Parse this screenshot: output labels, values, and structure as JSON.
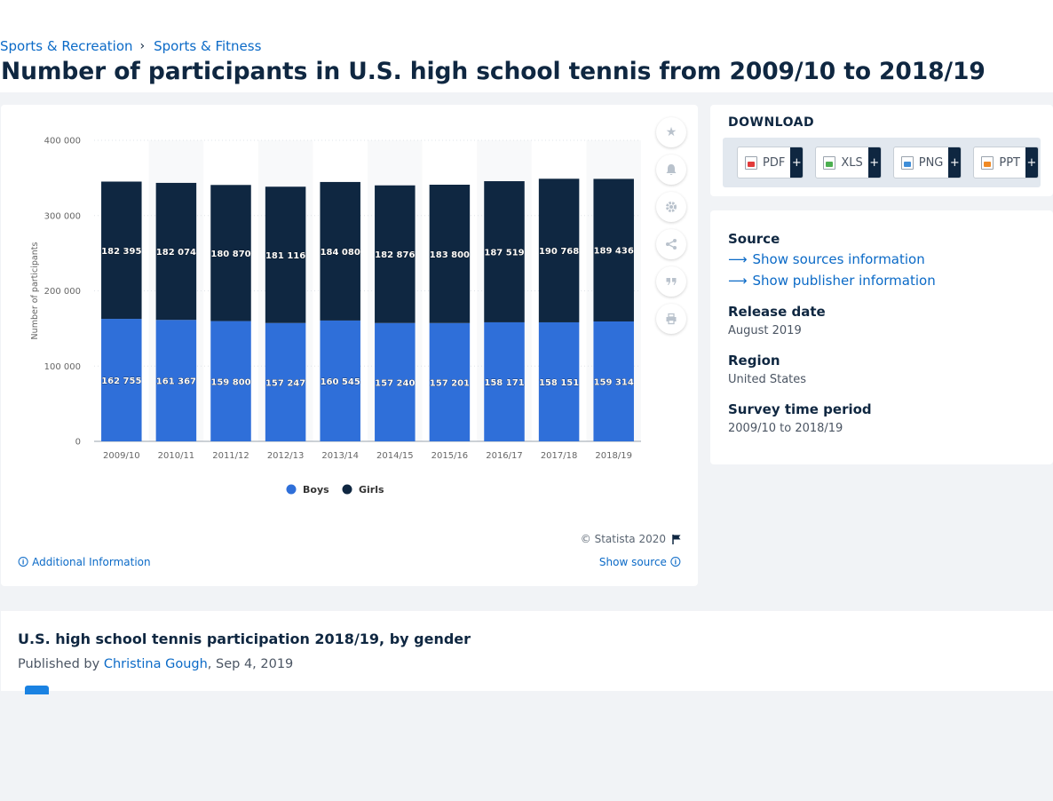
{
  "breadcrumb": {
    "item1": "Sports & Recreation",
    "separator": "›",
    "item2": "Sports & Fitness"
  },
  "page_title": "Number of participants in U.S. high school tennis from 2009/10 to 2018/19",
  "chart_tools": [
    "star-icon",
    "bell-icon",
    "gear-icon",
    "share-icon",
    "quote-icon",
    "print-icon"
  ],
  "chart_footer": {
    "copyright": "© Statista 2020",
    "additional_info": "Additional Information",
    "show_source": "Show source"
  },
  "download": {
    "title": "DOWNLOAD",
    "buttons": [
      {
        "label": "PDF",
        "color": "#e23b3b"
      },
      {
        "label": "XLS",
        "color": "#4caf50"
      },
      {
        "label": "PNG",
        "color": "#3f8ed8"
      },
      {
        "label": "PPT",
        "color": "#f08a24"
      }
    ],
    "plus": "+"
  },
  "meta": {
    "source_label": "Source",
    "show_sources": "Show sources information",
    "show_publisher": "Show publisher information",
    "release_label": "Release date",
    "release_value": "August 2019",
    "region_label": "Region",
    "region_value": "United States",
    "survey_label": "Survey time period",
    "survey_value": "2009/10 to 2018/19"
  },
  "related": {
    "title": "U.S. high school tennis participation 2018/19, by gender",
    "published_by": "Published by",
    "author": "Christina Gough",
    "date": ", Sep 4, 2019"
  },
  "chart_data": {
    "type": "bar",
    "stacked": true,
    "categories": [
      "2009/10",
      "2010/11",
      "2011/12",
      "2012/13",
      "2013/14",
      "2014/15",
      "2015/16",
      "2016/17",
      "2017/18",
      "2018/19"
    ],
    "series": [
      {
        "name": "Boys",
        "color": "#2f6fd9",
        "values": [
          162755,
          161367,
          159800,
          157247,
          160545,
          157240,
          157201,
          158171,
          158151,
          159314
        ],
        "labels": [
          "162 755",
          "161 367",
          "159 800",
          "157 247",
          "160 545",
          "157 240",
          "157 201",
          "158 171",
          "158 151",
          "159 314"
        ]
      },
      {
        "name": "Girls",
        "color": "#0f2741",
        "values": [
          182395,
          182074,
          180870,
          181116,
          184080,
          182876,
          183800,
          187519,
          190768,
          189436
        ],
        "labels": [
          "182 395",
          "182 074",
          "180 870",
          "181 116",
          "184 080",
          "182 876",
          "183 800",
          "187 519",
          "190 768",
          "189 436"
        ]
      }
    ],
    "ylabel": "Number of participants",
    "ylim": [
      0,
      400000
    ],
    "yticks": [
      0,
      100000,
      200000,
      300000,
      400000
    ],
    "ytick_labels": [
      "0",
      "100 000",
      "200 000",
      "300 000",
      "400 000"
    ],
    "legend_position": "bottom-center",
    "grid": true
  }
}
